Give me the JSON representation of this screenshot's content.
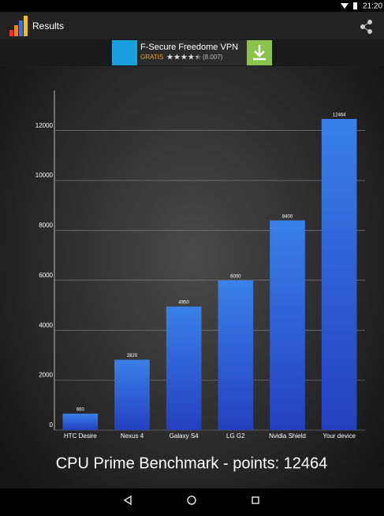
{
  "status_bar": {
    "time": "21:20"
  },
  "app_bar": {
    "title": "Results"
  },
  "ad": {
    "title": "F-Secure Freedome VPN",
    "label": "GRATIS",
    "rating": 4.5,
    "rating_count": "(8.007)"
  },
  "chart_data": {
    "type": "bar",
    "title": "CPU Prime Benchmark - points: 12464",
    "categories": [
      "HTC Desire",
      "Nexus 4",
      "Galaxy S4",
      "LG G2",
      "Nvidia Shield",
      "Your device"
    ],
    "values": [
      660,
      2820,
      4950,
      6000,
      8400,
      12464
    ],
    "color": "#2f63d6",
    "ylim": [
      0,
      13600
    ],
    "yticks": [
      0,
      2000,
      4000,
      6000,
      8000,
      10000,
      12000
    ],
    "grid": true
  }
}
